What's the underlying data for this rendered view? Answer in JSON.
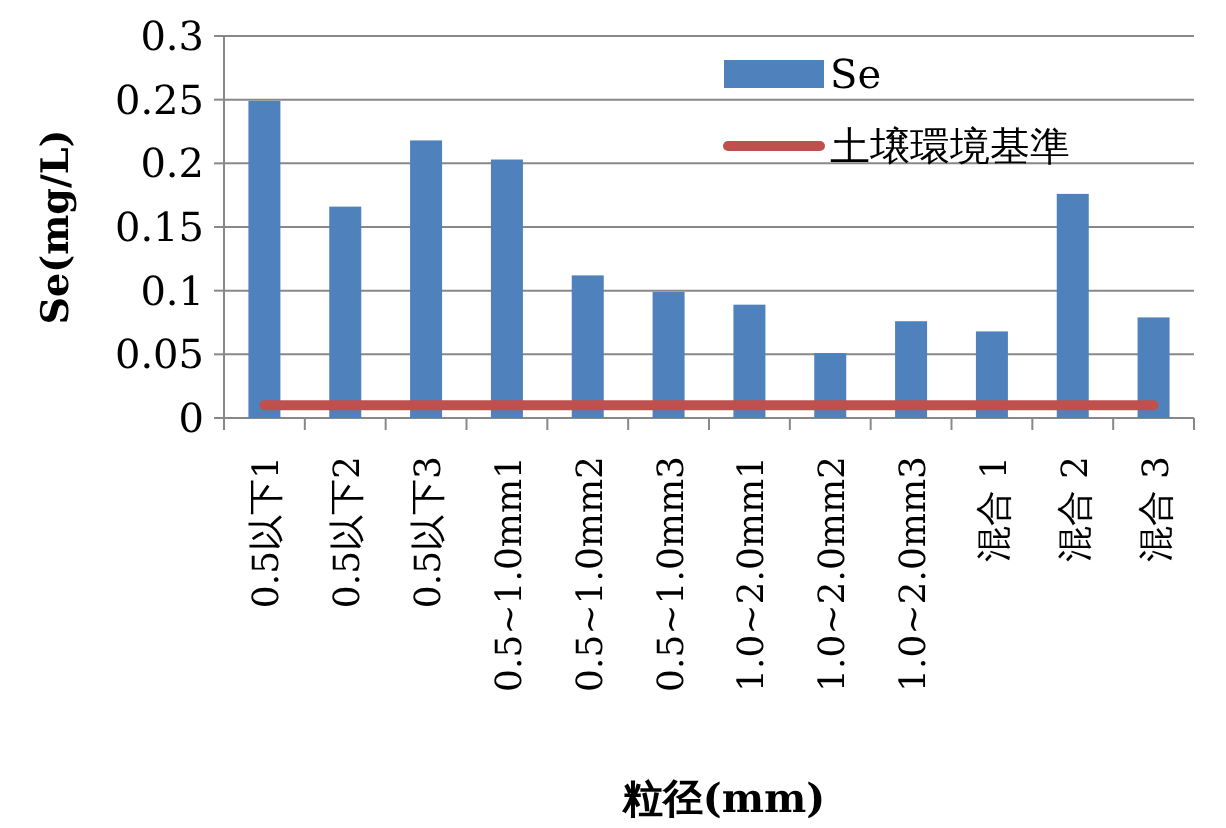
{
  "chart_data": {
    "type": "bar",
    "xlabel": "粒径(mm)",
    "ylabel": "Se(mg/L)",
    "categories": [
      "0.5以下1",
      "0.5以下2",
      "0.5以下3",
      "0.5~1.0mm1",
      "0.5~1.0mm2",
      "0.5~1.0mm3",
      "1.0~2.0mm1",
      "1.0~2.0mm2",
      "1.0~2.0mm3",
      "混合 1",
      "混合 2",
      "混合 3"
    ],
    "series": [
      {
        "name": "Se",
        "color": "#4f81bd",
        "values": [
          0.249,
          0.166,
          0.218,
          0.203,
          0.112,
          0.099,
          0.089,
          0.051,
          0.076,
          0.068,
          0.176,
          0.079
        ]
      },
      {
        "name": "土壌環境基準",
        "type": "line",
        "color": "#c0504d",
        "values": [
          0.01,
          0.01,
          0.01,
          0.01,
          0.01,
          0.01,
          0.01,
          0.01,
          0.01,
          0.01,
          0.01,
          0.01
        ]
      }
    ],
    "ylim": [
      0,
      0.3
    ],
    "yticks": [
      0,
      0.05,
      0.1,
      0.15,
      0.2,
      0.25,
      0.3
    ],
    "grid": "y",
    "legend": "top right",
    "marker": "none"
  }
}
